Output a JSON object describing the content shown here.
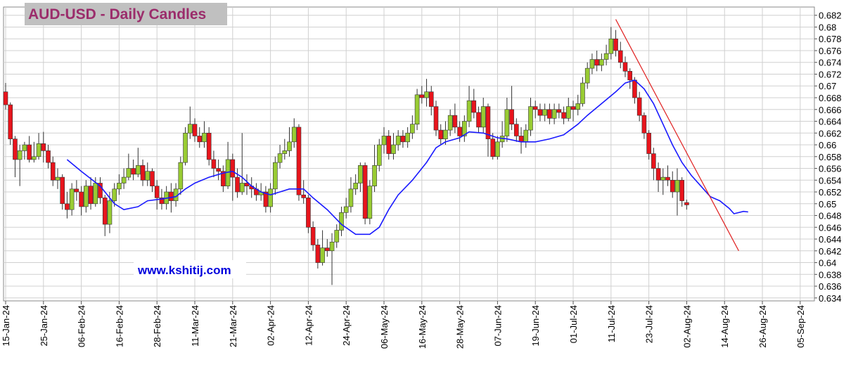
{
  "chart_data": {
    "type": "candlestick",
    "title": "AUD-USD - Daily Candles",
    "watermark": "www.kshitij.com",
    "x": [
      "15-Jan-24",
      "16-Jan-24",
      "17-Jan-24",
      "18-Jan-24",
      "19-Jan-24",
      "22-Jan-24",
      "23-Jan-24",
      "24-Jan-24",
      "25-Jan-24",
      "26-Jan-24",
      "29-Jan-24",
      "30-Jan-24",
      "31-Jan-24",
      "01-Feb-24",
      "02-Feb-24",
      "05-Feb-24",
      "06-Feb-24",
      "07-Feb-24",
      "08-Feb-24",
      "09-Feb-24",
      "12-Feb-24",
      "13-Feb-24",
      "14-Feb-24",
      "15-Feb-24",
      "16-Feb-24",
      "19-Feb-24",
      "20-Feb-24",
      "21-Feb-24",
      "22-Feb-24",
      "23-Feb-24",
      "26-Feb-24",
      "27-Feb-24",
      "28-Feb-24",
      "29-Feb-24",
      "01-Mar-24",
      "04-Mar-24",
      "05-Mar-24",
      "06-Mar-24",
      "07-Mar-24",
      "08-Mar-24",
      "11-Mar-24",
      "12-Mar-24",
      "13-Mar-24",
      "14-Mar-24",
      "15-Mar-24",
      "18-Mar-24",
      "19-Mar-24",
      "20-Mar-24",
      "21-Mar-24",
      "22-Mar-24",
      "25-Mar-24",
      "26-Mar-24",
      "27-Mar-24",
      "28-Mar-24",
      "29-Mar-24",
      "01-Apr-24",
      "02-Apr-24",
      "03-Apr-24",
      "04-Apr-24",
      "05-Apr-24",
      "08-Apr-24",
      "09-Apr-24",
      "10-Apr-24",
      "11-Apr-24",
      "12-Apr-24",
      "15-Apr-24",
      "16-Apr-24",
      "17-Apr-24",
      "18-Apr-24",
      "19-Apr-24",
      "22-Apr-24",
      "23-Apr-24",
      "24-Apr-24",
      "25-Apr-24",
      "26-Apr-24",
      "29-Apr-24",
      "30-Apr-24",
      "01-May-24",
      "02-May-24",
      "03-May-24",
      "06-May-24",
      "07-May-24",
      "08-May-24",
      "09-May-24",
      "10-May-24",
      "13-May-24",
      "14-May-24",
      "15-May-24",
      "16-May-24",
      "17-May-24",
      "20-May-24",
      "21-May-24",
      "22-May-24",
      "23-May-24",
      "24-May-24",
      "27-May-24",
      "28-May-24",
      "29-May-24",
      "30-May-24",
      "31-May-24",
      "03-Jun-24",
      "04-Jun-24",
      "05-Jun-24",
      "06-Jun-24",
      "07-Jun-24",
      "10-Jun-24",
      "11-Jun-24",
      "12-Jun-24",
      "13-Jun-24",
      "14-Jun-24",
      "17-Jun-24",
      "18-Jun-24",
      "19-Jun-24",
      "20-Jun-24",
      "21-Jun-24",
      "24-Jun-24",
      "25-Jun-24",
      "26-Jun-24",
      "27-Jun-24",
      "28-Jun-24",
      "01-Jul-24",
      "02-Jul-24",
      "03-Jul-24",
      "04-Jul-24",
      "05-Jul-24",
      "08-Jul-24",
      "09-Jul-24",
      "10-Jul-24",
      "11-Jul-24",
      "12-Jul-24",
      "15-Jul-24",
      "16-Jul-24",
      "17-Jul-24",
      "18-Jul-24",
      "19-Jul-24",
      "22-Jul-24",
      "23-Jul-24",
      "24-Jul-24",
      "25-Jul-24",
      "26-Jul-24",
      "29-Jul-24",
      "30-Jul-24",
      "31-Jul-24",
      "01-Aug-24",
      "02-Aug-24"
    ],
    "open": [
      0.669,
      0.6668,
      0.661,
      0.6575,
      0.659,
      0.66,
      0.6575,
      0.658,
      0.6602,
      0.659,
      0.657,
      0.654,
      0.6545,
      0.65,
      0.649,
      0.6525,
      0.652,
      0.6495,
      0.653,
      0.65,
      0.6535,
      0.651,
      0.6465,
      0.6505,
      0.6525,
      0.6535,
      0.6545,
      0.656,
      0.655,
      0.6565,
      0.654,
      0.6555,
      0.653,
      0.651,
      0.65,
      0.652,
      0.6505,
      0.6525,
      0.657,
      0.662,
      0.6635,
      0.6615,
      0.6605,
      0.662,
      0.6575,
      0.656,
      0.6555,
      0.653,
      0.6575,
      0.6545,
      0.652,
      0.6535,
      0.653,
      0.6525,
      0.6515,
      0.652,
      0.6495,
      0.6525,
      0.657,
      0.6585,
      0.659,
      0.6605,
      0.663,
      0.6515,
      0.651,
      0.646,
      0.643,
      0.64,
      0.6425,
      0.642,
      0.6435,
      0.6455,
      0.6485,
      0.6495,
      0.6525,
      0.6535,
      0.6565,
      0.6475,
      0.653,
      0.6565,
      0.66,
      0.6615,
      0.6585,
      0.66,
      0.6615,
      0.6605,
      0.662,
      0.6635,
      0.6685,
      0.668,
      0.669,
      0.6665,
      0.6625,
      0.661,
      0.6625,
      0.665,
      0.663,
      0.6615,
      0.664,
      0.6675,
      0.6655,
      0.663,
      0.6665,
      0.661,
      0.658,
      0.6605,
      0.6615,
      0.666,
      0.6635,
      0.6615,
      0.6605,
      0.6625,
      0.6665,
      0.666,
      0.665,
      0.666,
      0.6645,
      0.666,
      0.6655,
      0.6645,
      0.6665,
      0.666,
      0.667,
      0.6705,
      0.673,
      0.6745,
      0.6735,
      0.6745,
      0.6755,
      0.678,
      0.676,
      0.674,
      0.6725,
      0.671,
      0.668,
      0.665,
      0.662,
      0.6585,
      0.656,
      0.654,
      0.6545,
      0.654,
      0.652,
      0.654,
      0.6502
    ],
    "high": [
      0.6705,
      0.6672,
      0.6615,
      0.66,
      0.6605,
      0.6615,
      0.6605,
      0.662,
      0.6622,
      0.66,
      0.658,
      0.656,
      0.655,
      0.652,
      0.6535,
      0.654,
      0.653,
      0.654,
      0.6545,
      0.6545,
      0.6545,
      0.6515,
      0.652,
      0.6535,
      0.655,
      0.656,
      0.6585,
      0.6575,
      0.6595,
      0.6575,
      0.657,
      0.656,
      0.654,
      0.6525,
      0.653,
      0.6535,
      0.6535,
      0.658,
      0.663,
      0.6665,
      0.6645,
      0.663,
      0.664,
      0.663,
      0.659,
      0.6575,
      0.6565,
      0.6605,
      0.6585,
      0.656,
      0.662,
      0.655,
      0.6545,
      0.6535,
      0.6535,
      0.653,
      0.6535,
      0.658,
      0.66,
      0.661,
      0.663,
      0.6645,
      0.6635,
      0.654,
      0.6515,
      0.647,
      0.644,
      0.6455,
      0.644,
      0.645,
      0.6465,
      0.6495,
      0.651,
      0.6545,
      0.655,
      0.657,
      0.657,
      0.654,
      0.66,
      0.661,
      0.663,
      0.6625,
      0.662,
      0.6625,
      0.6625,
      0.663,
      0.665,
      0.6695,
      0.67,
      0.6712,
      0.67,
      0.6675,
      0.6635,
      0.664,
      0.666,
      0.667,
      0.664,
      0.665,
      0.67,
      0.6695,
      0.6665,
      0.668,
      0.667,
      0.662,
      0.6615,
      0.664,
      0.668,
      0.67,
      0.6645,
      0.663,
      0.6635,
      0.668,
      0.6675,
      0.667,
      0.667,
      0.667,
      0.667,
      0.667,
      0.6665,
      0.668,
      0.6675,
      0.6685,
      0.6715,
      0.674,
      0.6755,
      0.676,
      0.6755,
      0.677,
      0.68,
      0.6795,
      0.6775,
      0.675,
      0.673,
      0.6715,
      0.669,
      0.6655,
      0.6625,
      0.6595,
      0.657,
      0.656,
      0.6565,
      0.6555,
      0.656,
      0.6545,
      0.6507
    ],
    "low": [
      0.666,
      0.66,
      0.6545,
      0.653,
      0.6575,
      0.657,
      0.657,
      0.6575,
      0.657,
      0.656,
      0.653,
      0.6525,
      0.649,
      0.6475,
      0.648,
      0.6505,
      0.648,
      0.6485,
      0.649,
      0.6495,
      0.65,
      0.6445,
      0.645,
      0.6495,
      0.6515,
      0.6525,
      0.654,
      0.654,
      0.6545,
      0.653,
      0.653,
      0.652,
      0.649,
      0.649,
      0.649,
      0.6485,
      0.6495,
      0.6515,
      0.6565,
      0.661,
      0.6605,
      0.6595,
      0.6595,
      0.6565,
      0.6545,
      0.654,
      0.652,
      0.6525,
      0.6505,
      0.651,
      0.6515,
      0.6515,
      0.651,
      0.6505,
      0.6505,
      0.6485,
      0.6485,
      0.6515,
      0.656,
      0.6575,
      0.658,
      0.6595,
      0.6505,
      0.65,
      0.645,
      0.642,
      0.639,
      0.6395,
      0.641,
      0.6362,
      0.6425,
      0.6445,
      0.6475,
      0.6485,
      0.6515,
      0.652,
      0.6465,
      0.6465,
      0.652,
      0.6555,
      0.6585,
      0.6575,
      0.6575,
      0.659,
      0.6595,
      0.6595,
      0.661,
      0.6625,
      0.667,
      0.6665,
      0.665,
      0.6615,
      0.66,
      0.66,
      0.6615,
      0.662,
      0.6605,
      0.6605,
      0.663,
      0.6645,
      0.662,
      0.662,
      0.658,
      0.6575,
      0.6575,
      0.6595,
      0.6605,
      0.6625,
      0.6605,
      0.6585,
      0.6595,
      0.6615,
      0.6645,
      0.664,
      0.664,
      0.6635,
      0.6635,
      0.6645,
      0.6635,
      0.664,
      0.664,
      0.665,
      0.6665,
      0.6695,
      0.672,
      0.6725,
      0.6725,
      0.6735,
      0.6745,
      0.675,
      0.673,
      0.6715,
      0.6695,
      0.667,
      0.664,
      0.661,
      0.6575,
      0.654,
      0.652,
      0.6515,
      0.653,
      0.651,
      0.648,
      0.6495,
      0.649
    ],
    "close": [
      0.6668,
      0.661,
      0.6575,
      0.659,
      0.66,
      0.6575,
      0.658,
      0.6602,
      0.659,
      0.657,
      0.654,
      0.6545,
      0.65,
      0.649,
      0.6525,
      0.652,
      0.6495,
      0.653,
      0.65,
      0.6535,
      0.651,
      0.6465,
      0.6505,
      0.6525,
      0.6535,
      0.6545,
      0.656,
      0.655,
      0.6565,
      0.654,
      0.6555,
      0.653,
      0.651,
      0.65,
      0.652,
      0.6505,
      0.6525,
      0.657,
      0.662,
      0.6635,
      0.6615,
      0.6605,
      0.662,
      0.6575,
      0.656,
      0.6555,
      0.653,
      0.6575,
      0.6545,
      0.652,
      0.6535,
      0.653,
      0.6525,
      0.6515,
      0.652,
      0.6495,
      0.6525,
      0.657,
      0.6585,
      0.659,
      0.6605,
      0.663,
      0.6515,
      0.651,
      0.646,
      0.643,
      0.64,
      0.6425,
      0.642,
      0.6435,
      0.6455,
      0.6485,
      0.6495,
      0.6525,
      0.6535,
      0.6565,
      0.6475,
      0.653,
      0.6565,
      0.66,
      0.6615,
      0.6585,
      0.66,
      0.6615,
      0.6605,
      0.662,
      0.6635,
      0.6685,
      0.668,
      0.669,
      0.6665,
      0.6625,
      0.661,
      0.6625,
      0.665,
      0.663,
      0.6615,
      0.664,
      0.6675,
      0.6655,
      0.663,
      0.6665,
      0.661,
      0.658,
      0.6605,
      0.6615,
      0.666,
      0.6635,
      0.6615,
      0.6605,
      0.6625,
      0.6665,
      0.666,
      0.665,
      0.666,
      0.6645,
      0.666,
      0.6655,
      0.6645,
      0.6665,
      0.666,
      0.667,
      0.6705,
      0.673,
      0.6745,
      0.6735,
      0.6745,
      0.6755,
      0.678,
      0.676,
      0.674,
      0.6725,
      0.671,
      0.668,
      0.665,
      0.662,
      0.6585,
      0.656,
      0.654,
      0.6545,
      0.654,
      0.652,
      0.654,
      0.6505,
      0.6498
    ],
    "up_color": "#99cc33",
    "down_color": "#e8141c",
    "ma": {
      "color": "#1a1aff",
      "x": [
        "01-Feb-24",
        "06-Feb-24",
        "12-Feb-24",
        "15-Feb-24",
        "19-Feb-24",
        "22-Feb-24",
        "26-Feb-24",
        "29-Feb-24",
        "05-Mar-24",
        "07-Mar-24",
        "11-Mar-24",
        "14-Mar-24",
        "19-Mar-24",
        "21-Mar-24",
        "25-Mar-24",
        "27-Mar-24",
        "29-Mar-24",
        "02-Apr-24",
        "04-Apr-24",
        "08-Apr-24",
        "11-Apr-24",
        "15-Apr-24",
        "18-Apr-24",
        "23-Apr-24",
        "26-Apr-24",
        "01-May-24",
        "03-May-24",
        "07-May-24",
        "09-May-24",
        "14-May-24",
        "17-May-24",
        "21-May-24",
        "23-May-24",
        "28-May-24",
        "30-May-24",
        "04-Jun-24",
        "07-Jun-24",
        "11-Jun-24",
        "14-Jun-24",
        "19-Jun-24",
        "24-Jun-24",
        "27-Jun-24",
        "02-Jul-24",
        "04-Jul-24",
        "09-Jul-24",
        "12-Jul-24",
        "16-Jul-24",
        "18-Jul-24",
        "22-Jul-24",
        "24-Jul-24",
        "26-Jul-24",
        "30-Jul-24",
        "01-Aug-24",
        "05-Aug-24",
        "07-Aug-24",
        "09-Aug-24",
        "13-Aug-24",
        "15-Aug-24",
        "16-Aug-24",
        "20-Aug-24",
        "21-Aug-24"
      ],
      "values": [
        0.6575,
        0.6555,
        0.653,
        0.65,
        0.649,
        0.6495,
        0.6505,
        0.6508,
        0.6512,
        0.6525,
        0.6535,
        0.6545,
        0.6552,
        0.6555,
        0.6545,
        0.653,
        0.652,
        0.6515,
        0.652,
        0.6525,
        0.6525,
        0.651,
        0.649,
        0.6465,
        0.6448,
        0.6448,
        0.646,
        0.649,
        0.6515,
        0.654,
        0.657,
        0.6595,
        0.6605,
        0.6612,
        0.6622,
        0.662,
        0.6612,
        0.661,
        0.6605,
        0.6605,
        0.661,
        0.6617,
        0.6635,
        0.665,
        0.667,
        0.669,
        0.6705,
        0.671,
        0.6695,
        0.667,
        0.6635,
        0.66,
        0.657,
        0.6548,
        0.653,
        0.6512,
        0.6505,
        0.6492,
        0.6483,
        0.6487,
        0.6486
      ]
    },
    "trendline": {
      "color": "#e02020",
      "x": [
        "12-Jul-24",
        "19-Aug-24"
      ],
      "values": [
        0.6813,
        0.642
      ]
    },
    "xlim": [
      "15-Jan-24",
      "10-Sep-24"
    ],
    "xticks": [
      "15-Jan-24",
      "25-Jan-24",
      "06-Feb-24",
      "16-Feb-24",
      "28-Feb-24",
      "11-Mar-24",
      "21-Mar-24",
      "02-Apr-24",
      "12-Apr-24",
      "24-Apr-24",
      "06-May-24",
      "16-May-24",
      "28-May-24",
      "07-Jun-24",
      "19-Jun-24",
      "01-Jul-24",
      "11-Jul-24",
      "23-Jul-24",
      "02-Aug-24",
      "14-Aug-24",
      "26-Aug-24",
      "05-Sep-24"
    ],
    "ylim": [
      0.6335,
      0.6834
    ],
    "yticks": [
      0.634,
      0.636,
      0.638,
      0.64,
      0.642,
      0.644,
      0.646,
      0.648,
      0.65,
      0.652,
      0.654,
      0.656,
      0.658,
      0.66,
      0.662,
      0.664,
      0.666,
      0.668,
      0.67,
      0.672,
      0.674,
      0.676,
      0.678,
      0.68,
      0.682
    ],
    "grid": true
  }
}
